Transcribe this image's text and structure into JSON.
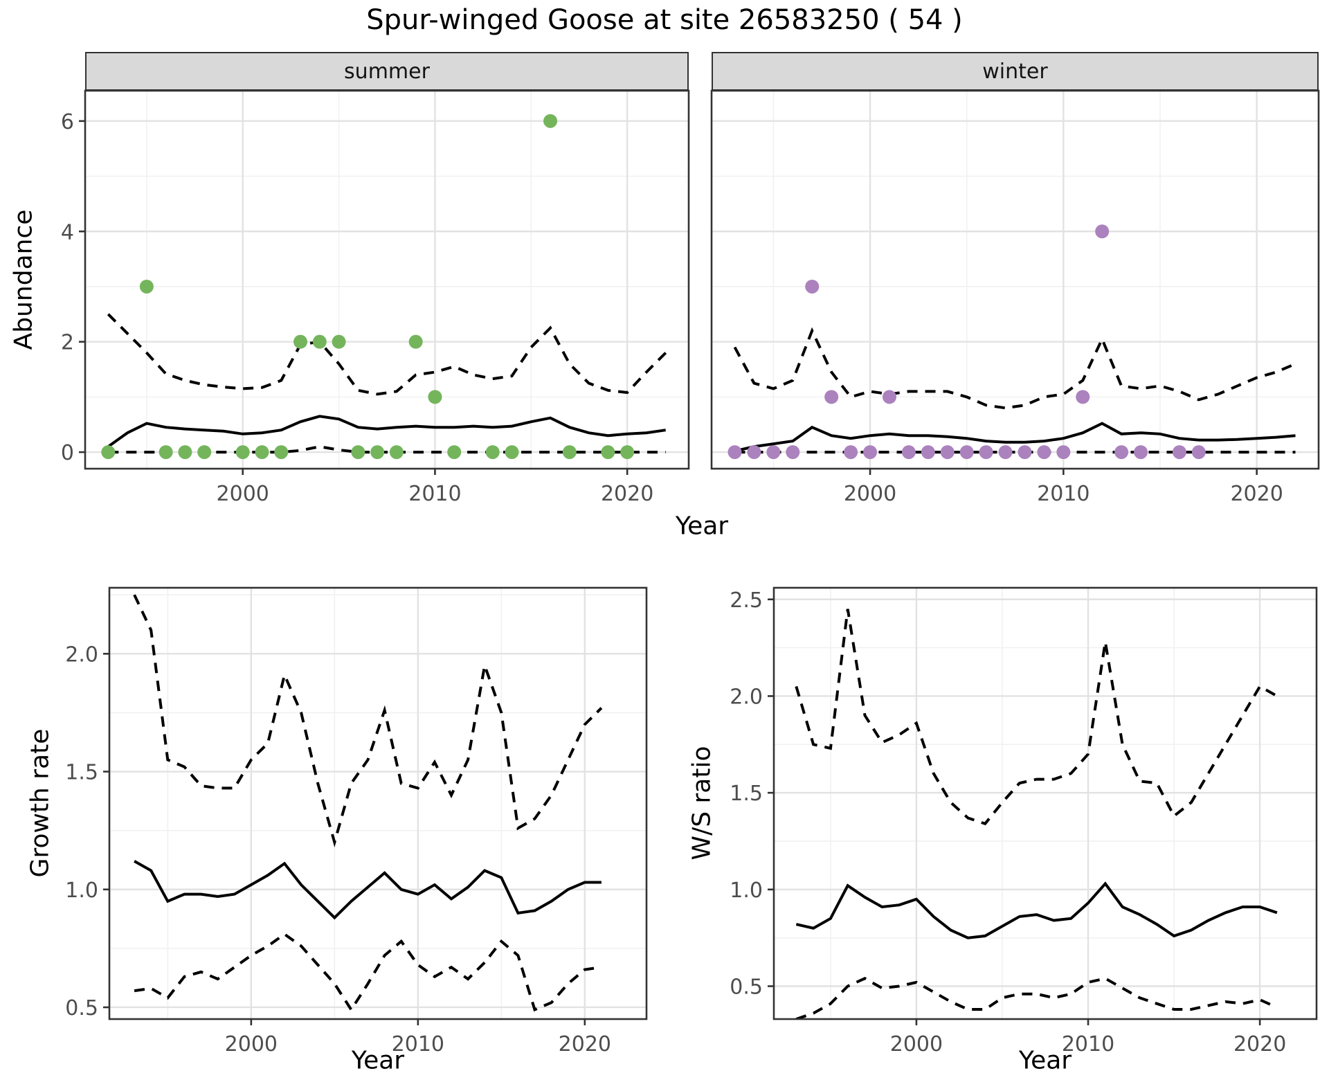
{
  "title": "Spur-winged Goose at site 26583250 ( 54 )",
  "colors": {
    "summer_point": "#74B55C",
    "winter_point": "#AB82BD",
    "line": "#000000",
    "strip_bg": "#D9D9D9",
    "grid_major": "#E2E2E2",
    "grid_minor": "#F1F1F1",
    "panel_border": "#333333",
    "tick_text": "#4D4D4D"
  },
  "chart_data": [
    {
      "type": "line",
      "name": "abundance",
      "ylabel": "Abundance",
      "xlabel": "Year",
      "legend": "none",
      "grid": "on",
      "x_ticks": [
        2000,
        2010,
        2020
      ],
      "y_ticks": [
        0,
        2,
        4,
        6
      ],
      "y_tick_labels": [
        "0",
        "2",
        "4",
        "6"
      ],
      "xlim": [
        1991.8,
        2023.2
      ],
      "ylim": [
        -0.3,
        6.55
      ],
      "x": [
        1993,
        1994,
        1995,
        1996,
        1997,
        1998,
        1999,
        2000,
        2001,
        2002,
        2003,
        2004,
        2005,
        2006,
        2007,
        2008,
        2009,
        2010,
        2011,
        2012,
        2013,
        2014,
        2015,
        2016,
        2017,
        2018,
        2019,
        2020,
        2021,
        2022
      ],
      "facets": [
        {
          "label": "summer",
          "point_color_key": "summer_point",
          "points": [
            [
              1993,
              0
            ],
            [
              1995,
              3
            ],
            [
              1996,
              0
            ],
            [
              1997,
              0
            ],
            [
              1998,
              0
            ],
            [
              2000,
              0
            ],
            [
              2001,
              0
            ],
            [
              2002,
              0
            ],
            [
              2003,
              2
            ],
            [
              2004,
              2
            ],
            [
              2005,
              2
            ],
            [
              2006,
              0
            ],
            [
              2007,
              0
            ],
            [
              2008,
              0
            ],
            [
              2009,
              2
            ],
            [
              2010,
              1
            ],
            [
              2011,
              0
            ],
            [
              2013,
              0
            ],
            [
              2014,
              0
            ],
            [
              2016,
              6
            ],
            [
              2017,
              0
            ],
            [
              2019,
              0
            ],
            [
              2020,
              0
            ]
          ],
          "series": [
            {
              "name": "median",
              "style": "solid",
              "values": [
                0.1,
                0.35,
                0.52,
                0.45,
                0.42,
                0.4,
                0.38,
                0.33,
                0.35,
                0.4,
                0.55,
                0.65,
                0.6,
                0.45,
                0.42,
                0.45,
                0.47,
                0.45,
                0.45,
                0.47,
                0.45,
                0.47,
                0.55,
                0.62,
                0.45,
                0.35,
                0.3,
                0.33,
                0.35,
                0.4
              ]
            },
            {
              "name": "upper",
              "style": "dashed",
              "values": [
                2.5,
                2.15,
                1.8,
                1.42,
                1.3,
                1.22,
                1.18,
                1.15,
                1.17,
                1.3,
                1.95,
                2.0,
                1.6,
                1.12,
                1.05,
                1.1,
                1.4,
                1.45,
                1.55,
                1.4,
                1.33,
                1.38,
                1.9,
                2.25,
                1.6,
                1.25,
                1.12,
                1.08,
                1.45,
                1.8
              ]
            },
            {
              "name": "lower",
              "style": "dashed",
              "values": [
                0,
                0,
                0,
                0,
                0,
                0,
                0,
                0,
                0,
                0,
                0.03,
                0.1,
                0.04,
                0,
                0,
                0,
                0,
                0,
                0,
                0,
                0,
                0,
                0,
                0,
                0,
                0,
                0,
                0,
                0,
                0
              ]
            }
          ]
        },
        {
          "label": "winter",
          "point_color_key": "winter_point",
          "points": [
            [
              1993,
              0
            ],
            [
              1994,
              0
            ],
            [
              1995,
              0
            ],
            [
              1996,
              0
            ],
            [
              1997,
              3
            ],
            [
              1998,
              1
            ],
            [
              1999,
              0
            ],
            [
              2000,
              0
            ],
            [
              2001,
              1
            ],
            [
              2002,
              0
            ],
            [
              2003,
              0
            ],
            [
              2004,
              0
            ],
            [
              2005,
              0
            ],
            [
              2006,
              0
            ],
            [
              2007,
              0
            ],
            [
              2008,
              0
            ],
            [
              2009,
              0
            ],
            [
              2010,
              0
            ],
            [
              2011,
              1
            ],
            [
              2012,
              4
            ],
            [
              2013,
              0
            ],
            [
              2014,
              0
            ],
            [
              2016,
              0
            ],
            [
              2017,
              0
            ]
          ],
          "series": [
            {
              "name": "median",
              "style": "solid",
              "values": [
                0.02,
                0.1,
                0.15,
                0.2,
                0.45,
                0.3,
                0.25,
                0.3,
                0.33,
                0.3,
                0.3,
                0.28,
                0.25,
                0.2,
                0.18,
                0.18,
                0.2,
                0.25,
                0.35,
                0.52,
                0.33,
                0.35,
                0.33,
                0.25,
                0.22,
                0.22,
                0.23,
                0.25,
                0.27,
                0.3
              ]
            },
            {
              "name": "upper",
              "style": "dashed",
              "values": [
                1.9,
                1.25,
                1.15,
                1.3,
                2.2,
                1.45,
                1.0,
                1.1,
                1.05,
                1.1,
                1.1,
                1.1,
                1.0,
                0.85,
                0.8,
                0.85,
                1.0,
                1.05,
                1.3,
                2.05,
                1.2,
                1.15,
                1.2,
                1.1,
                0.95,
                1.05,
                1.2,
                1.35,
                1.45,
                1.6
              ]
            },
            {
              "name": "lower",
              "style": "dashed",
              "values": [
                0,
                0,
                0,
                0,
                0,
                0,
                0,
                0,
                0,
                0,
                0,
                0,
                0,
                0,
                0,
                0,
                0,
                0,
                0,
                0,
                0,
                0,
                0,
                0,
                0,
                0,
                0,
                0,
                0,
                0
              ]
            }
          ]
        }
      ]
    },
    {
      "type": "line",
      "name": "growth_rate",
      "ylabel": "Growth rate",
      "xlabel": "Year",
      "grid": "on",
      "x_ticks": [
        2000,
        2010,
        2020
      ],
      "y_ticks": [
        0.5,
        1.0,
        1.5,
        2.0
      ],
      "y_tick_labels": [
        "0.5",
        "1.0",
        "1.5",
        "2.0"
      ],
      "xlim": [
        1991.5,
        2023.7
      ],
      "ylim": [
        0.45,
        2.28
      ],
      "x": [
        1993,
        1994,
        1995,
        1996,
        1997,
        1998,
        1999,
        2000,
        2001,
        2002,
        2003,
        2004,
        2005,
        2006,
        2007,
        2008,
        2009,
        2010,
        2011,
        2012,
        2013,
        2014,
        2015,
        2016,
        2017,
        2018,
        2019,
        2020,
        2021
      ],
      "series": [
        {
          "name": "median",
          "style": "solid",
          "values": [
            1.12,
            1.08,
            0.95,
            0.98,
            0.98,
            0.97,
            0.98,
            1.02,
            1.06,
            1.11,
            1.02,
            0.95,
            0.88,
            0.95,
            1.01,
            1.07,
            1.0,
            0.98,
            1.02,
            0.96,
            1.01,
            1.08,
            1.05,
            0.9,
            0.91,
            0.95,
            1.0,
            1.03,
            1.03
          ]
        },
        {
          "name": "upper",
          "style": "dashed",
          "values": [
            2.25,
            2.1,
            1.55,
            1.52,
            1.44,
            1.43,
            1.43,
            1.55,
            1.62,
            1.91,
            1.75,
            1.45,
            1.2,
            1.45,
            1.55,
            1.76,
            1.45,
            1.43,
            1.54,
            1.4,
            1.55,
            1.95,
            1.75,
            1.26,
            1.3,
            1.4,
            1.55,
            1.7,
            1.77
          ]
        },
        {
          "name": "lower",
          "style": "dashed",
          "values": [
            0.57,
            0.58,
            0.54,
            0.63,
            0.65,
            0.62,
            0.67,
            0.72,
            0.76,
            0.81,
            0.76,
            0.68,
            0.6,
            0.49,
            0.6,
            0.72,
            0.78,
            0.68,
            0.63,
            0.67,
            0.62,
            0.69,
            0.78,
            0.72,
            0.49,
            0.52,
            0.6,
            0.66,
            0.67
          ]
        }
      ]
    },
    {
      "type": "line",
      "name": "ws_ratio",
      "ylabel": "W/S ratio",
      "xlabel": "Year",
      "grid": "on",
      "x_ticks": [
        2000,
        2010,
        2020
      ],
      "y_ticks": [
        0.5,
        1.0,
        1.5,
        2.0,
        2.5
      ],
      "y_tick_labels": [
        "0.5",
        "1.0",
        "1.5",
        "2.0",
        "2.5"
      ],
      "xlim": [
        1991.7,
        2023.3
      ],
      "ylim": [
        0.33,
        2.56
      ],
      "x": [
        1993,
        1994,
        1995,
        1996,
        1997,
        1998,
        1999,
        2000,
        2001,
        2002,
        2003,
        2004,
        2005,
        2006,
        2007,
        2008,
        2009,
        2010,
        2011,
        2012,
        2013,
        2014,
        2015,
        2016,
        2017,
        2018,
        2019,
        2020,
        2021
      ],
      "series": [
        {
          "name": "median",
          "style": "solid",
          "values": [
            0.82,
            0.8,
            0.85,
            1.02,
            0.96,
            0.91,
            0.92,
            0.95,
            0.86,
            0.79,
            0.75,
            0.76,
            0.81,
            0.86,
            0.87,
            0.84,
            0.85,
            0.93,
            1.03,
            0.91,
            0.87,
            0.82,
            0.76,
            0.79,
            0.84,
            0.88,
            0.91,
            0.91,
            0.88
          ]
        },
        {
          "name": "upper",
          "style": "dashed",
          "values": [
            2.05,
            1.75,
            1.73,
            2.45,
            1.9,
            1.76,
            1.8,
            1.86,
            1.6,
            1.45,
            1.37,
            1.34,
            1.45,
            1.55,
            1.57,
            1.57,
            1.6,
            1.7,
            2.28,
            1.75,
            1.56,
            1.55,
            1.38,
            1.45,
            1.6,
            1.75,
            1.9,
            2.05,
            2.0
          ]
        },
        {
          "name": "lower",
          "style": "dashed",
          "values": [
            0.33,
            0.36,
            0.41,
            0.5,
            0.54,
            0.49,
            0.5,
            0.52,
            0.47,
            0.42,
            0.38,
            0.38,
            0.44,
            0.46,
            0.46,
            0.44,
            0.46,
            0.52,
            0.54,
            0.49,
            0.44,
            0.41,
            0.38,
            0.38,
            0.4,
            0.42,
            0.41,
            0.43,
            0.39
          ]
        }
      ]
    }
  ]
}
